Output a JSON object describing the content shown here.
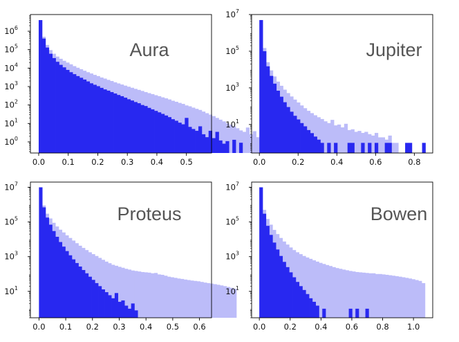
{
  "colors": {
    "dark_series": "#2828f0",
    "light_series": "#bcbcf9",
    "axes": "#000000",
    "title_text": "#555555"
  },
  "chart_data": [
    {
      "type": "histogram",
      "title": "Aura",
      "xlabel": "",
      "ylabel": "",
      "yscale": "log",
      "xlim": [
        -0.028,
        0.585
      ],
      "ylim": [
        0.25,
        8000000
      ],
      "xticks": [
        0.0,
        0.1,
        0.2,
        0.3,
        0.4,
        0.5
      ],
      "xtick_labels": [
        "0.0",
        "0.1",
        "0.2",
        "0.3",
        "0.4",
        "0.5"
      ],
      "yticks": [
        1,
        10,
        100,
        1000,
        10000,
        100000,
        1000000
      ],
      "ytick_base": "10",
      "ytick_exponents": [
        "0",
        "1",
        "2",
        "3",
        "4",
        "5",
        "6"
      ],
      "grid": false,
      "bin_width": 0.0115,
      "series": [
        {
          "color": "light",
          "x_start": 0.0,
          "values": [
            4000000,
            500000,
            180000,
            95000,
            60000,
            42000,
            32000,
            25000,
            20000,
            16000,
            12800,
            10500,
            8700,
            7200,
            6000,
            5100,
            4300,
            3700,
            3100,
            2700,
            2300,
            2000,
            1700,
            1480,
            1290,
            1120,
            980,
            860,
            750,
            660,
            580,
            500,
            440,
            390,
            340,
            300,
            260,
            230,
            200,
            170,
            150,
            130,
            115,
            95,
            85,
            72,
            62,
            54,
            44,
            36,
            30,
            25,
            20,
            16,
            13,
            10.5,
            8.5,
            7,
            5.5,
            4.2,
            3.5,
            6,
            2.6,
            3.8,
            1.8,
            2.2,
            1.6,
            1.4,
            0,
            0,
            1.2,
            0,
            1.3,
            0,
            0,
            0,
            0,
            0,
            0.9,
            0,
            1.1,
            0,
            0,
            0,
            0,
            0,
            0,
            0,
            0,
            0,
            0,
            0,
            0,
            0,
            0,
            0,
            0,
            0,
            0,
            0,
            0.9,
            0,
            0,
            0,
            0
          ]
        },
        {
          "color": "dark",
          "x_start": 0.0,
          "values": [
            4000000,
            400000,
            130000,
            60000,
            35000,
            22000,
            15000,
            11000,
            8000,
            6000,
            4700,
            3700,
            3000,
            2400,
            1900,
            1500,
            1250,
            1050,
            850,
            700,
            600,
            500,
            420,
            350,
            300,
            250,
            205,
            175,
            145,
            125,
            100,
            88,
            70,
            58,
            48,
            40,
            33,
            27,
            22,
            17,
            14,
            11,
            9,
            20,
            6.5,
            5,
            4,
            7,
            2.6,
            1.8,
            4,
            1.6,
            3.5,
            1.2,
            0.8,
            1.1,
            0,
            1.3,
            0,
            0.9,
            0,
            0,
            0,
            0,
            0,
            0,
            0,
            0,
            0,
            0,
            0.8,
            0,
            0,
            0,
            0,
            0,
            0,
            0,
            0,
            0,
            0,
            0,
            0,
            0,
            0,
            0,
            0,
            0,
            0,
            0,
            0,
            0,
            0,
            0,
            0,
            0,
            0,
            0,
            0,
            0,
            0,
            0,
            0,
            0,
            0
          ]
        }
      ]
    },
    {
      "type": "histogram",
      "title": "Jupiter",
      "xlabel": "",
      "ylabel": "",
      "yscale": "log",
      "xlim": [
        -0.04,
        0.895
      ],
      "ylim": [
        0.28,
        10000000
      ],
      "xticks": [
        0.0,
        0.2,
        0.4,
        0.6,
        0.8
      ],
      "xtick_labels": [
        "0.0",
        "0.2",
        "0.4",
        "0.6",
        "0.8"
      ],
      "yticks": [
        10,
        1000,
        100000,
        10000000
      ],
      "ytick_base": "10",
      "ytick_exponents": [
        "1",
        "3",
        "5",
        "7"
      ],
      "grid": false,
      "bin_width": 0.0175,
      "series": [
        {
          "color": "light",
          "x_start": 0.0,
          "values": [
            5000000,
            150000,
            25000,
            9000,
            4200,
            2200,
            1300,
            800,
            520,
            340,
            230,
            160,
            110,
            78,
            56,
            42,
            32,
            25,
            20,
            15,
            12,
            18,
            9,
            10,
            7,
            11,
            5,
            5.5,
            4,
            4.5,
            3.5,
            4,
            3,
            2.5,
            3.5,
            2,
            2,
            1.5,
            2.5,
            1,
            1,
            0,
            0,
            0,
            0,
            0,
            0,
            0,
            0,
            0
          ]
        },
        {
          "color": "dark",
          "x_start": 0.0,
          "values": [
            5000000,
            100000,
            15000,
            4500,
            1700,
            700,
            330,
            165,
            90,
            50,
            30,
            19,
            12,
            8,
            5,
            3.4,
            2.2,
            1.5,
            1,
            0,
            1,
            0,
            1,
            0,
            0,
            0,
            1,
            1,
            0,
            0,
            1,
            0,
            1,
            0,
            1,
            0,
            0,
            1,
            1,
            0,
            0,
            0,
            0,
            1,
            1,
            0,
            0,
            0,
            1,
            0
          ]
        }
      ]
    },
    {
      "type": "histogram",
      "title": "Proteus",
      "xlabel": "",
      "ylabel": "",
      "yscale": "log",
      "xlim": [
        -0.032,
        0.645
      ],
      "ylim": [
        0.3,
        20000000
      ],
      "xticks": [
        0.0,
        0.1,
        0.2,
        0.3,
        0.4,
        0.5,
        0.6
      ],
      "xtick_labels": [
        "0.0",
        "0.1",
        "0.2",
        "0.3",
        "0.4",
        "0.5",
        "0.6"
      ],
      "yticks": [
        10,
        1000,
        100000,
        10000000
      ],
      "ytick_base": "10",
      "ytick_exponents": [
        "1",
        "3",
        "5",
        "7"
      ],
      "grid": false,
      "bin_width": 0.0123,
      "series": [
        {
          "color": "light",
          "x_start": 0.0,
          "values": [
            10000000,
            900000,
            300000,
            160000,
            90000,
            55000,
            36000,
            25000,
            17000,
            12000,
            8500,
            6000,
            4300,
            3200,
            2400,
            1800,
            1400,
            1100,
            850,
            660,
            520,
            420,
            340,
            300,
            260,
            230,
            200,
            180,
            160,
            150,
            140,
            130,
            125,
            120,
            110,
            115,
            95,
            90,
            80,
            70,
            65,
            60,
            55,
            52,
            48,
            45,
            42,
            40,
            38,
            35,
            32,
            30,
            28,
            26,
            24,
            22,
            20,
            18,
            16,
            14
          ]
        },
        {
          "color": "dark",
          "x_start": 0.0,
          "values": [
            10000000,
            700000,
            180000,
            70000,
            30000,
            14000,
            7000,
            3800,
            2100,
            1200,
            700,
            430,
            270,
            170,
            110,
            70,
            46,
            30,
            20,
            13,
            9,
            6,
            4,
            8,
            2.5,
            3,
            1.5,
            1,
            2,
            0.8,
            0,
            0,
            0,
            0,
            0,
            0,
            0,
            0,
            0,
            0,
            0,
            0,
            0,
            0,
            0,
            0,
            0,
            0,
            0,
            0,
            0,
            0,
            0,
            0,
            0,
            0,
            0,
            0,
            0,
            0
          ]
        }
      ]
    },
    {
      "type": "histogram",
      "title": "Bowen",
      "xlabel": "",
      "ylabel": "",
      "yscale": "log",
      "xlim": [
        -0.05,
        1.125
      ],
      "ylim": [
        0.3,
        20000000
      ],
      "xticks": [
        0.0,
        0.2,
        0.4,
        0.6,
        0.8,
        1.0
      ],
      "xtick_labels": [
        "0.0",
        "0.2",
        "0.4",
        "0.6",
        "0.8",
        "1.0"
      ],
      "yticks": [
        10,
        1000,
        100000,
        10000000
      ],
      "ytick_base": "10",
      "ytick_exponents": [
        "1",
        "3",
        "5",
        "7"
      ],
      "grid": false,
      "bin_width": 0.0215,
      "series": [
        {
          "color": "light",
          "x_start": 0.0,
          "values": [
            10000000,
            500000,
            150000,
            70000,
            35000,
            20000,
            12000,
            7500,
            5000,
            3400,
            2400,
            1800,
            1400,
            1100,
            900,
            750,
            620,
            520,
            440,
            380,
            330,
            290,
            250,
            220,
            200,
            180,
            165,
            150,
            140,
            130,
            125,
            120,
            115,
            110,
            110,
            100,
            100,
            95,
            90,
            85,
            80,
            75,
            70,
            65,
            60,
            55,
            50,
            45,
            40,
            30
          ]
        },
        {
          "color": "dark",
          "x_start": 0.0,
          "values": [
            10000000,
            300000,
            60000,
            18000,
            6500,
            2600,
            1100,
            500,
            250,
            125,
            65,
            35,
            20,
            12,
            7,
            4,
            2.5,
            1.5,
            0,
            1,
            0,
            0,
            0,
            0,
            0,
            0,
            0,
            1,
            0,
            1,
            0,
            0,
            1,
            0,
            0,
            0,
            0,
            0,
            0,
            0,
            0,
            0,
            0,
            0,
            0,
            0,
            0,
            0,
            0,
            0
          ]
        }
      ]
    }
  ]
}
